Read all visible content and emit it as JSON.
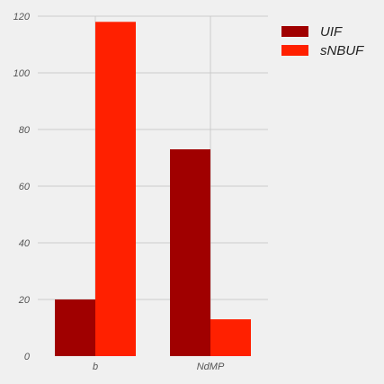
{
  "chart_data": {
    "type": "bar",
    "categories": [
      "b",
      "NdMP"
    ],
    "series": [
      {
        "name": "UIF",
        "values": [
          20,
          73
        ],
        "color": "#a00000"
      },
      {
        "name": "sNBUF",
        "values": [
          118,
          13
        ],
        "color": "#ff2000"
      }
    ],
    "ylim": [
      0,
      120
    ],
    "yticks": [
      0,
      20,
      40,
      60,
      80,
      100,
      120
    ],
    "grid": true,
    "legend": "top-right",
    "title": "",
    "xlabel": "",
    "ylabel": ""
  }
}
